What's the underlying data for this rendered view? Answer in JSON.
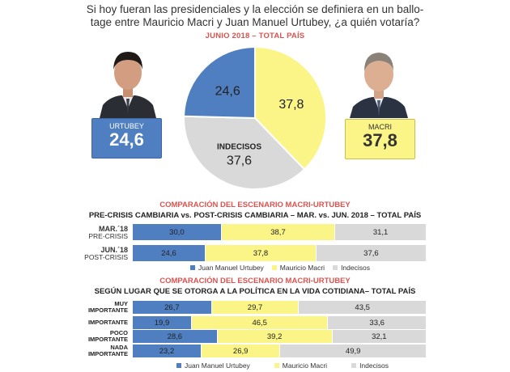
{
  "question": "Si hoy fueran las presidenciales y la elección se definiera en un ballo-tage entre Mauricio Macri y Juan Manuel Urtubey, ¿a quién votaría?",
  "question_line1": "Si hoy fueran las presidenciales y la elección se definiera en un ballo-",
  "question_line2": "tage entre Mauricio Macri y Juan Manuel Urtubey, ¿a quién votaría?",
  "subtitle": "JUNIO 2018 – TOTAL PAÍS",
  "candidates": {
    "urtubey": {
      "name": "URTUBEY",
      "value": "24,6"
    },
    "macri": {
      "name": "MACRI",
      "value": "37,8"
    }
  },
  "colors": {
    "urtubey": "#4f7fc0",
    "macri": "#fbf487",
    "indecisos": "#d9d9d9",
    "accent": "#d9534f"
  },
  "section1": {
    "title": "COMPARACIÓN DEL ESCENARIO MACRI-URTUBEY",
    "subtitle": "PRE-CRISIS CAMBIARIA vs. POST-CRISIS CAMBIARIA – MAR. vs. JUN. 2018 – TOTAL PAÍS"
  },
  "section2": {
    "title": "COMPARACIÓN DEL ESCENARIO MACRI-URTUBEY",
    "subtitle": "SEGÚN LUGAR QUE SE OTORGA A LA POLÍTICA EN LA VIDA COTIDIANA– TOTAL PAÍS"
  },
  "legend": {
    "urtubey": "Juan Manuel Urtubey",
    "macri": "Mauricio Macri",
    "indecisos": "Indecisos"
  },
  "chart_data": [
    {
      "type": "pie",
      "title": "JUNIO 2018 – TOTAL PAÍS",
      "slices": [
        {
          "label": "",
          "value": 37.8,
          "display": "37,8",
          "color": "#fbf487"
        },
        {
          "label": "INDECISOS",
          "value": 37.6,
          "display": "37,6",
          "color": "#d9d9d9"
        },
        {
          "label": "",
          "value": 24.6,
          "display": "24,6",
          "color": "#4f7fc0"
        }
      ]
    },
    {
      "type": "bar",
      "orientation": "horizontal-stacked",
      "title": "COMPARACIÓN DEL ESCENARIO MACRI-URTUBEY",
      "categories": [
        {
          "main": "MAR.´18",
          "sub": "PRE-CRISIS"
        },
        {
          "main": "JUN.´18",
          "sub": "POST-CRISIS"
        }
      ],
      "series": [
        {
          "name": "Juan Manuel Urtubey",
          "values": [
            30.0,
            24.6
          ],
          "display": [
            "30,0",
            "24,6"
          ]
        },
        {
          "name": "Mauricio Macri",
          "values": [
            38.7,
            37.8
          ],
          "display": [
            "38,7",
            "37,8"
          ]
        },
        {
          "name": "Indecisos",
          "values": [
            31.1,
            37.6
          ],
          "display": [
            "31,1",
            "37,6"
          ]
        }
      ]
    },
    {
      "type": "bar",
      "orientation": "horizontal-stacked",
      "title": "COMPARACIÓN DEL ESCENARIO MACRI-URTUBEY",
      "categories": [
        {
          "main": "MUY",
          "sub": "IMPORTANTE"
        },
        {
          "main": "IMPORTANTE",
          "sub": ""
        },
        {
          "main": "POCO",
          "sub": "IMPORTANTE"
        },
        {
          "main": "NADA",
          "sub": "IMPORTANTE"
        }
      ],
      "series": [
        {
          "name": "Juan Manuel Urtubey",
          "values": [
            26.7,
            19.9,
            28.6,
            23.2
          ],
          "display": [
            "26,7",
            "19,9",
            "28,6",
            "23,2"
          ]
        },
        {
          "name": "Mauricio Macri",
          "values": [
            29.7,
            46.5,
            39.2,
            26.9
          ],
          "display": [
            "29,7",
            "46,5",
            "39,2",
            "26,9"
          ]
        },
        {
          "name": "Indecisos",
          "values": [
            43.5,
            33.6,
            32.1,
            49.9
          ],
          "display": [
            "43,5",
            "33,6",
            "32,1",
            "49,9"
          ]
        }
      ]
    }
  ]
}
